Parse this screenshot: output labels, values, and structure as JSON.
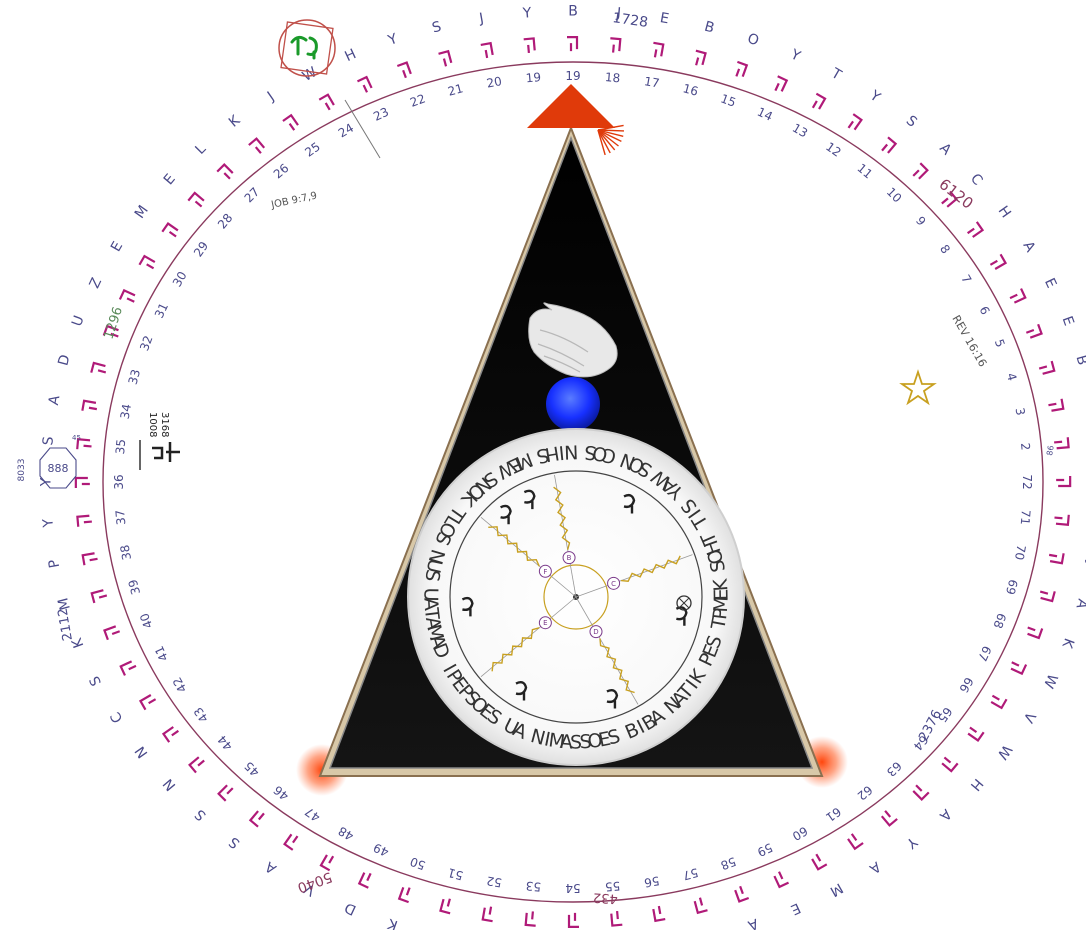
{
  "outer_ring": {
    "labels": [
      {
        "letter": "B",
        "num": "19"
      },
      {
        "letter": "J",
        "num": "18"
      },
      {
        "letter": "E",
        "num": "17"
      },
      {
        "letter": "B",
        "num": "16"
      },
      {
        "letter": "O",
        "num": "15"
      },
      {
        "letter": "Y",
        "num": "14"
      },
      {
        "letter": "T",
        "num": "13"
      },
      {
        "letter": "Y",
        "num": "12"
      },
      {
        "letter": "S",
        "num": "11"
      },
      {
        "letter": "A",
        "num": "10"
      },
      {
        "letter": "C",
        "num": "9"
      },
      {
        "letter": "H",
        "num": "8"
      },
      {
        "letter": "A",
        "num": "7"
      },
      {
        "letter": "E",
        "num": "6"
      },
      {
        "letter": "E",
        "num": "5"
      },
      {
        "letter": "B",
        "num": "4"
      },
      {
        "letter": "S",
        "num": "3"
      },
      {
        "letter": "E",
        "num": "2"
      },
      {
        "letter": "R",
        "num": "72"
      },
      {
        "letter": "Y",
        "num": "71"
      },
      {
        "letter": "J",
        "num": "70"
      },
      {
        "letter": "A",
        "num": "69"
      },
      {
        "letter": "K",
        "num": "68"
      },
      {
        "letter": "W",
        "num": "67"
      },
      {
        "letter": "V",
        "num": "66"
      },
      {
        "letter": "W",
        "num": "65"
      },
      {
        "letter": "H",
        "num": "64"
      },
      {
        "letter": "A",
        "num": "63"
      },
      {
        "letter": "Y",
        "num": "62"
      },
      {
        "letter": "A",
        "num": "61"
      },
      {
        "letter": "M",
        "num": "60"
      },
      {
        "letter": "E",
        "num": "59"
      },
      {
        "letter": "A",
        "num": "58"
      },
      {
        "letter": "D",
        "num": "57"
      },
      {
        "letter": "B",
        "num": "56"
      },
      {
        "letter": "W",
        "num": "55"
      },
      {
        "letter": "Y",
        "num": "54"
      },
      {
        "letter": "E",
        "num": "53"
      },
      {
        "letter": "N",
        "num": "52"
      },
      {
        "letter": "D",
        "num": "51"
      },
      {
        "letter": "K",
        "num": "50"
      },
      {
        "letter": "D",
        "num": "49"
      },
      {
        "letter": "V",
        "num": "48"
      },
      {
        "letter": "A",
        "num": "47"
      },
      {
        "letter": "S",
        "num": "46"
      },
      {
        "letter": "S",
        "num": "45"
      },
      {
        "letter": "N",
        "num": "44"
      },
      {
        "letter": "N",
        "num": "43"
      },
      {
        "letter": "C",
        "num": "42"
      },
      {
        "letter": "S",
        "num": "41"
      },
      {
        "letter": "K",
        "num": "40"
      },
      {
        "letter": "M",
        "num": "39"
      },
      {
        "letter": "P",
        "num": "38"
      },
      {
        "letter": "Y",
        "num": "37"
      },
      {
        "letter": "Y",
        "num": "36"
      },
      {
        "letter": "S",
        "num": "35"
      },
      {
        "letter": "A",
        "num": "34"
      },
      {
        "letter": "D",
        "num": "33"
      },
      {
        "letter": "U",
        "num": "32"
      },
      {
        "letter": "Z",
        "num": "31"
      },
      {
        "letter": "E",
        "num": "30"
      },
      {
        "letter": "M",
        "num": "29"
      },
      {
        "letter": "E",
        "num": "28"
      },
      {
        "letter": "L",
        "num": "27"
      },
      {
        "letter": "K",
        "num": "26"
      },
      {
        "letter": "J",
        "num": "25"
      },
      {
        "letter": "W",
        "num": "24"
      },
      {
        "letter": "H",
        "num": "23"
      },
      {
        "letter": "Y",
        "num": "22"
      },
      {
        "letter": "S",
        "num": "21"
      },
      {
        "letter": "J",
        "num": "20"
      },
      {
        "letter": "Y",
        "num": "19"
      }
    ]
  },
  "annotations": {
    "job": "JOB 9:7,9",
    "rev": "REV 16:16",
    "n1728": "1728",
    "n6120": "6120",
    "n1296": "1296",
    "n1008": "1008",
    "n3168": "3168",
    "n2112": "2112",
    "n5040": "5040",
    "n432": "432",
    "n2376": "2376",
    "n888": "888",
    "n8033": "8033",
    "n45": "45",
    "n86": "86"
  },
  "wheel": {
    "outer_words": [
      "SAMIN",
      "AU",
      "SEOSPEPI",
      "DAMATAU",
      "SUN",
      "SOLT",
      "KONS",
      "WEM",
      "SHIN",
      "SOC",
      "NOS",
      "WAY",
      "SIT",
      "THOS",
      "KEMPT",
      "SEP",
      "KITAN",
      "ABIB",
      "SEOS"
    ],
    "inner_labels": [
      "B",
      "C",
      "D",
      "E",
      "F"
    ]
  },
  "colors": {
    "ring_stroke": "#8a3a5e",
    "hebrew": "#b01a78",
    "numbers": "#4a4a8a",
    "triangle_fill": "#0a0a0a",
    "arrow": "#e03a0a",
    "orb": "#1e3cff",
    "corner_glow": "#ff4a10",
    "wheel_text": "#333333",
    "gold": "#c8a020"
  }
}
